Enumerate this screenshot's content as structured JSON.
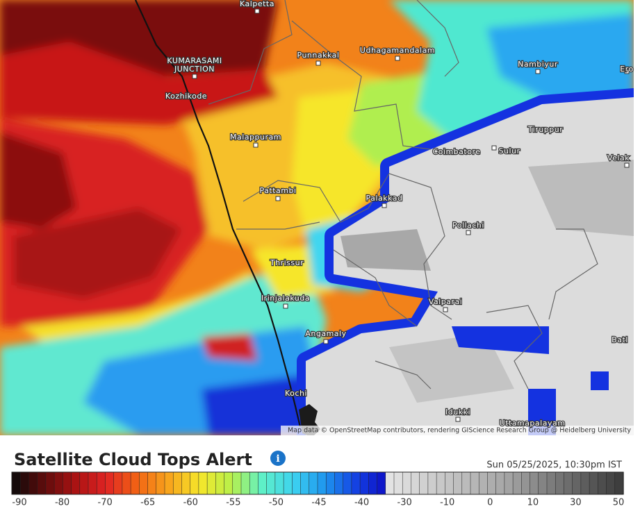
{
  "map": {
    "places": [
      {
        "label": "Kalpetta"
      },
      {
        "label": "KUMARASAMI"
      },
      {
        "label": "JUNCTION"
      },
      {
        "label": "Kozhikode"
      },
      {
        "label": "Punnakkal"
      },
      {
        "label": "Udhagamandalam"
      },
      {
        "label": "Nambiyur"
      },
      {
        "label": "Ero"
      },
      {
        "label": "Tiruppur"
      },
      {
        "label": "Coimbatore"
      },
      {
        "label": "Sulur"
      },
      {
        "label": "Velak"
      },
      {
        "label": "Malappuram"
      },
      {
        "label": "Pattambi"
      },
      {
        "label": "Palakkad"
      },
      {
        "label": "Pollachi"
      },
      {
        "label": "Thrissur"
      },
      {
        "label": "Irinjalakuda"
      },
      {
        "label": "Valparai"
      },
      {
        "label": "Angamaly"
      },
      {
        "label": "Batl"
      },
      {
        "label": "Kochi"
      },
      {
        "label": "Idukki"
      },
      {
        "label": "Uttamapalayam"
      }
    ],
    "attribution": "Map data © OpenStreetMap contributors, rendering GIScience Research Group @ Heidelberg University"
  },
  "header": {
    "title": "Satellite Cloud Tops Alert",
    "timestamp": "Sun 05/25/2025, 10:30pm IST"
  },
  "legend": {
    "ticks": [
      -90,
      -80,
      -70,
      -65,
      -60,
      -55,
      -50,
      -45,
      -40,
      -30,
      -10,
      0,
      10,
      30,
      50
    ],
    "colors": [
      "#0a0a0a",
      "#5c0c0c",
      "#a81212",
      "#e02424",
      "#f26414",
      "#f8a41c",
      "#f6e62a",
      "#b8f04a",
      "#5ef0c8",
      "#3cd2f0",
      "#1e94ee",
      "#1440e2",
      "#0c0cc4",
      "#e4e4e4",
      "#a6a6a6",
      "#3a3a3a"
    ]
  }
}
